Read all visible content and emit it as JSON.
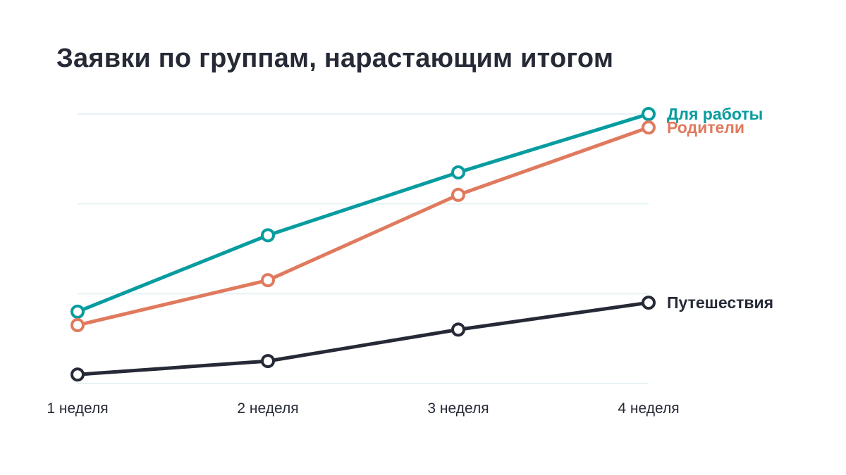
{
  "chart_data": {
    "type": "line",
    "title": "Заявки по группам, нарастающим итогом",
    "xlabel": "",
    "ylabel": "",
    "categories": [
      "1 неделя",
      "2 неделя",
      "3 неделя",
      "4 неделя"
    ],
    "ylim": [
      0,
      6
    ],
    "grid": true,
    "legend": "right-end-labels",
    "series": [
      {
        "name": "Для работы",
        "color": "#079c9f",
        "values": [
          1.6,
          3.3,
          4.7,
          6.0
        ]
      },
      {
        "name": "Родители",
        "color": "#e07a5e",
        "values": [
          1.3,
          2.3,
          4.2,
          5.7
        ]
      },
      {
        "name": "Путешествия",
        "color": "#262a36",
        "values": [
          0.2,
          0.5,
          1.2,
          1.8
        ]
      }
    ]
  }
}
